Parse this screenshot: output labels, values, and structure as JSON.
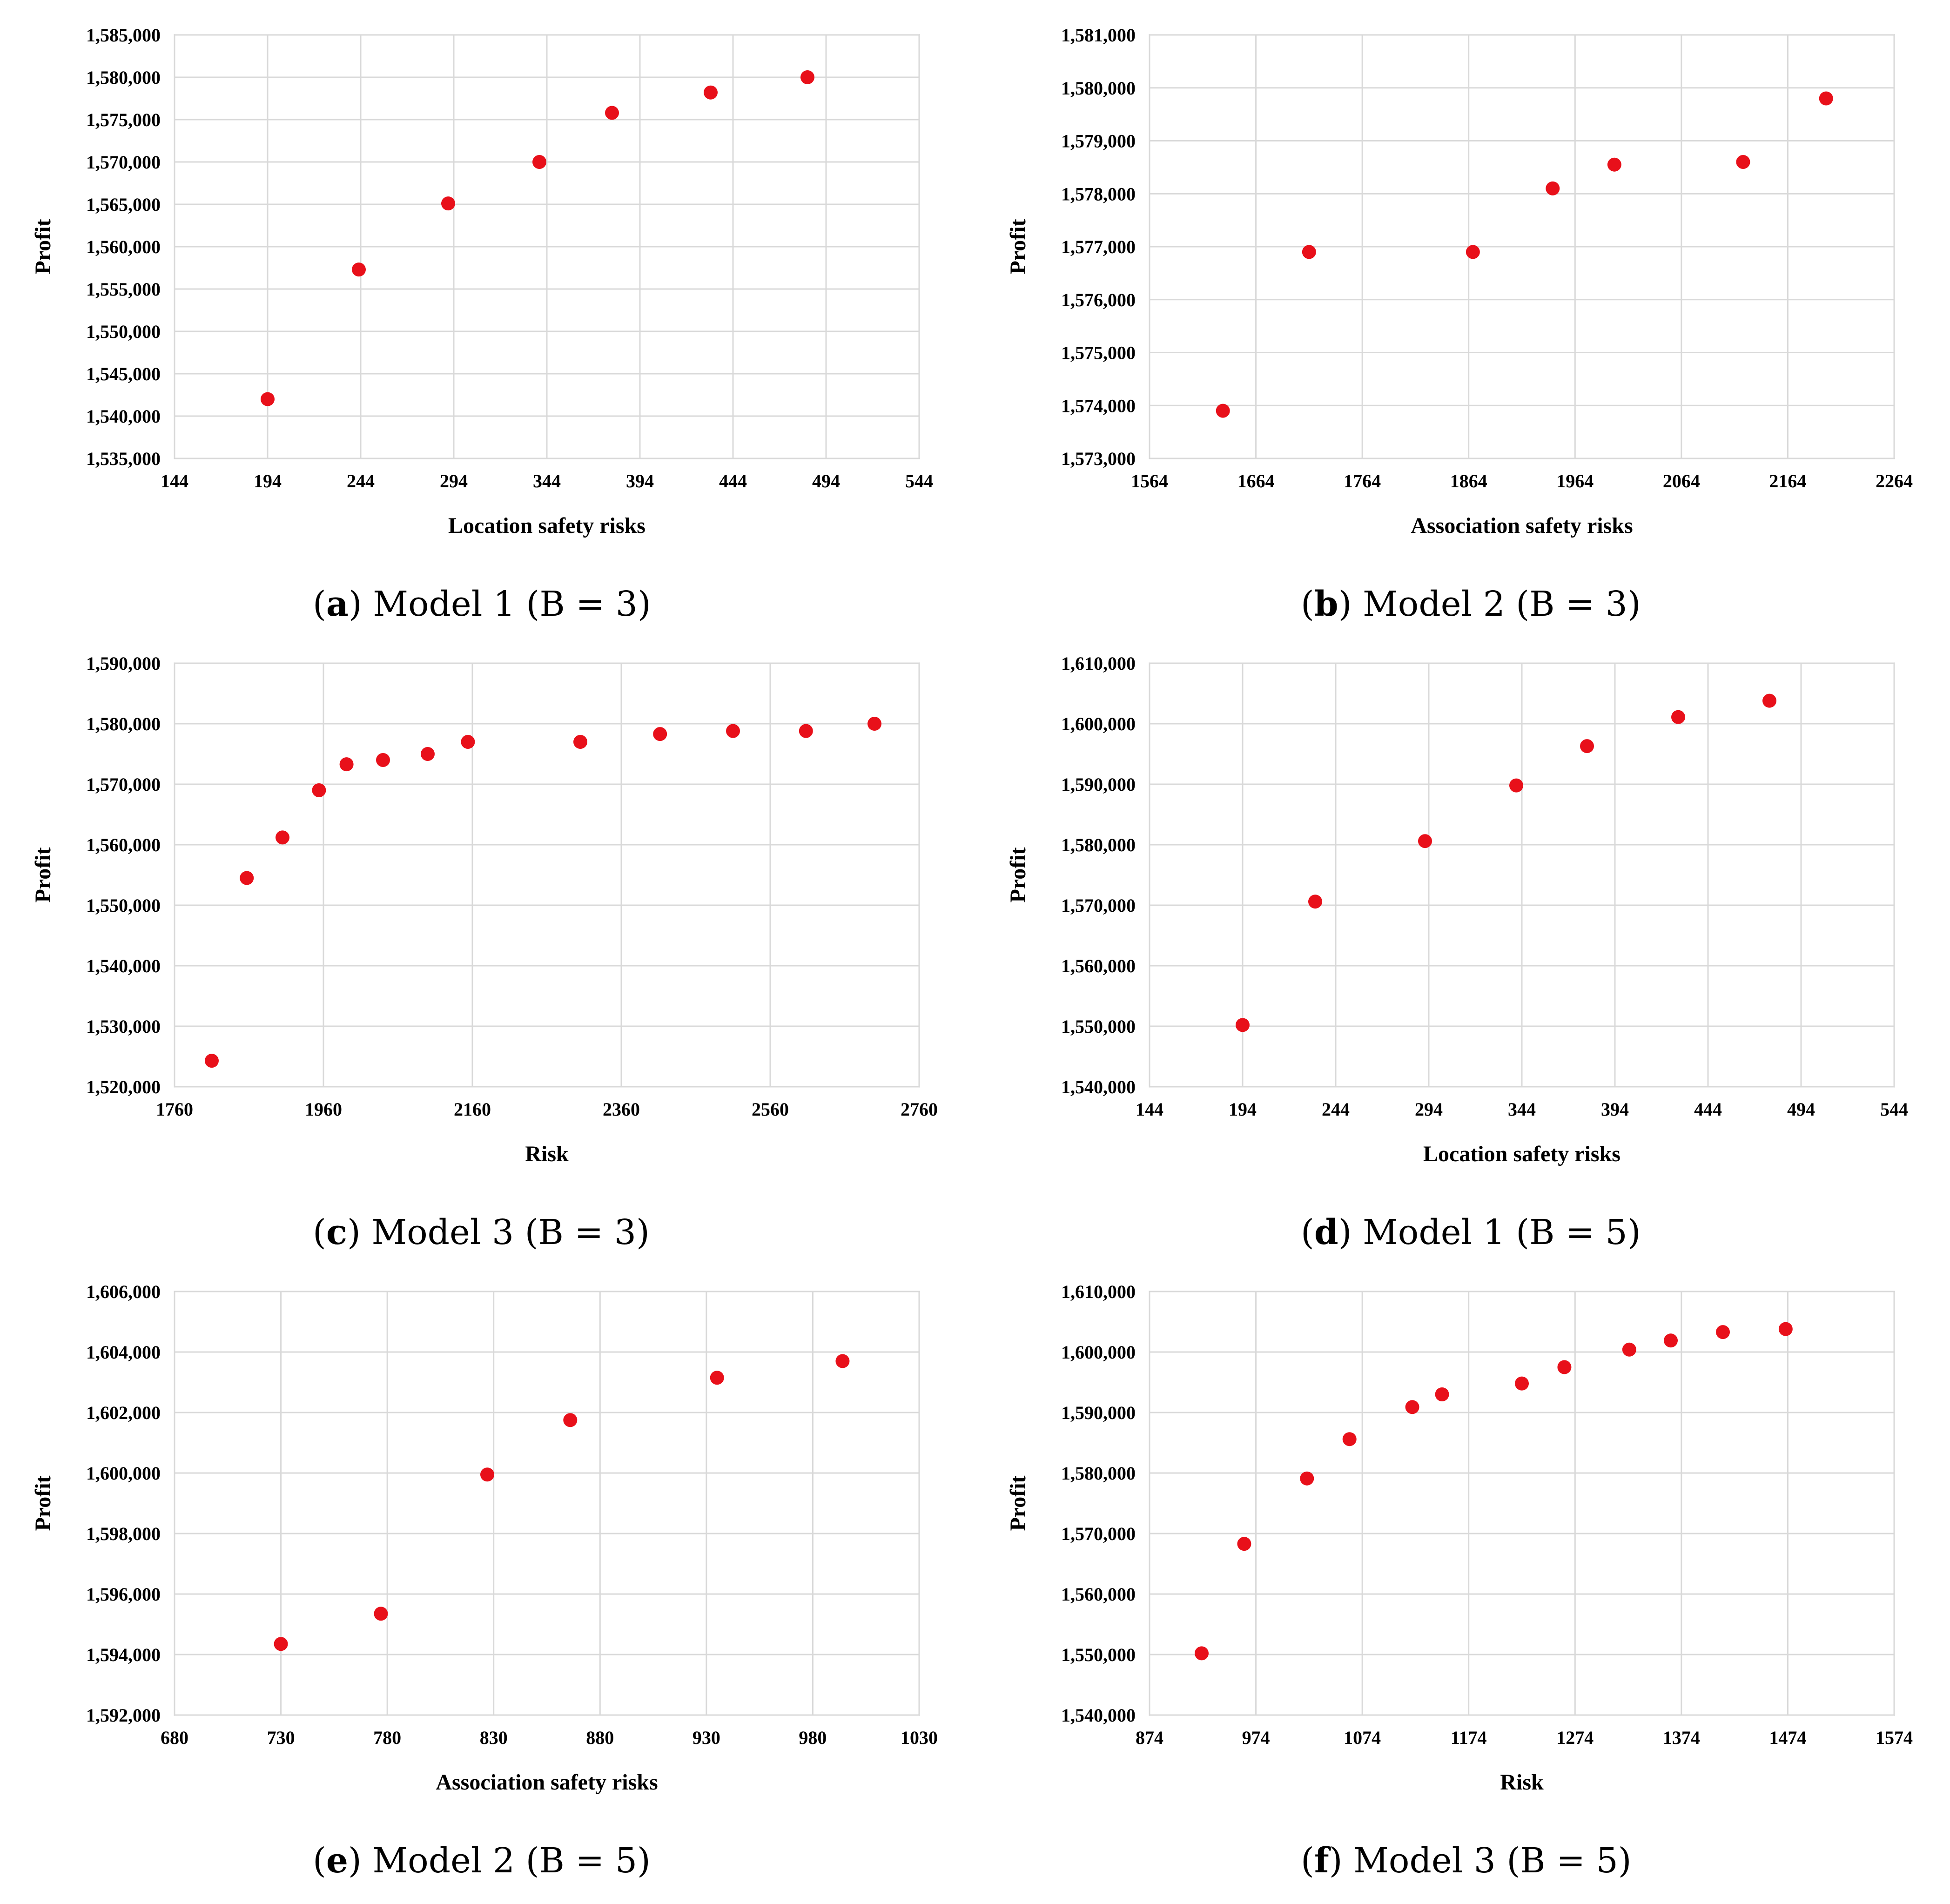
{
  "chart_data": [
    {
      "type": "scatter",
      "caption": {
        "letter": "a",
        "text": "Model 1 (B = 3)"
      },
      "xlabel": "Location safety risks",
      "ylabel": "Profit",
      "xlim": [
        144,
        544
      ],
      "xticks": [
        "144",
        "194",
        "244",
        "294",
        "344",
        "394",
        "444",
        "494",
        "544"
      ],
      "ylim": [
        1535000,
        1585000
      ],
      "yticks": [
        "1,535,000",
        "1,540,000",
        "1,545,000",
        "1,550,000",
        "1,555,000",
        "1,560,000",
        "1,565,000",
        "1,570,000",
        "1,575,000",
        "1,580,000",
        "1,585,000"
      ],
      "marker_color": "#e8101a",
      "points": [
        [
          194,
          1542000
        ],
        [
          243,
          1557300
        ],
        [
          291,
          1565100
        ],
        [
          340,
          1570000
        ],
        [
          379,
          1575800
        ],
        [
          432,
          1578200
        ],
        [
          484,
          1580000
        ]
      ]
    },
    {
      "type": "scatter",
      "caption": {
        "letter": "b",
        "text": "Model 2 (B = 3)"
      },
      "xlabel": "Association safety risks",
      "ylabel": "Profit",
      "xlim": [
        1564,
        2264
      ],
      "xticks": [
        "1564",
        "1664",
        "1764",
        "1864",
        "1964",
        "2064",
        "2164",
        "2264"
      ],
      "ylim": [
        1573000,
        1581000
      ],
      "yticks": [
        "1,573,000",
        "1,574,000",
        "1,575,000",
        "1,576,000",
        "1,577,000",
        "1,578,000",
        "1,579,000",
        "1,580,000",
        "1,581,000"
      ],
      "marker_color": "#e8101a",
      "points": [
        [
          1633,
          1573900
        ],
        [
          1714,
          1576900
        ],
        [
          1868,
          1576900
        ],
        [
          1943,
          1578100
        ],
        [
          2001,
          1578550
        ],
        [
          2122,
          1578600
        ],
        [
          2200,
          1579800
        ]
      ]
    },
    {
      "type": "scatter",
      "caption": {
        "letter": "c",
        "text": "Model 3 (B = 3)"
      },
      "xlabel": "Risk",
      "ylabel": "Profit",
      "xlim": [
        1760,
        2760
      ],
      "xticks": [
        "1760",
        "1960",
        "2160",
        "2360",
        "2560",
        "2760"
      ],
      "ylim": [
        1520000,
        1590000
      ],
      "yticks": [
        "1,520,000",
        "1,530,000",
        "1,540,000",
        "1,550,000",
        "1,560,000",
        "1,570,000",
        "1,580,000",
        "1,590,000"
      ],
      "marker_color": "#e8101a",
      "points": [
        [
          1810,
          1524300
        ],
        [
          1857,
          1554500
        ],
        [
          1905,
          1561200
        ],
        [
          1954,
          1569000
        ],
        [
          1991,
          1573300
        ],
        [
          2040,
          1574000
        ],
        [
          2100,
          1575000
        ],
        [
          2154,
          1577000
        ],
        [
          2305,
          1577000
        ],
        [
          2412,
          1578300
        ],
        [
          2510,
          1578800
        ],
        [
          2608,
          1578800
        ],
        [
          2700,
          1580000
        ]
      ]
    },
    {
      "type": "scatter",
      "caption": {
        "letter": "d",
        "text": "Model 1 (B = 5)"
      },
      "xlabel": "Location safety risks",
      "ylabel": "Profit",
      "xlim": [
        144,
        544
      ],
      "xticks": [
        "144",
        "194",
        "244",
        "294",
        "344",
        "394",
        "444",
        "494",
        "544"
      ],
      "ylim": [
        1540000,
        1610000
      ],
      "yticks": [
        "1,540,000",
        "1,550,000",
        "1,560,000",
        "1,570,000",
        "1,580,000",
        "1,590,000",
        "1,600,000",
        "1,610,000"
      ],
      "marker_color": "#e8101a",
      "points": [
        [
          194,
          1550200
        ],
        [
          233,
          1570600
        ],
        [
          292,
          1580600
        ],
        [
          341,
          1589800
        ],
        [
          379,
          1596300
        ],
        [
          428,
          1601100
        ],
        [
          477,
          1603800
        ]
      ]
    },
    {
      "type": "scatter",
      "caption": {
        "letter": "e",
        "text": "Model 2 (B = 5)"
      },
      "xlabel": "Association safety risks",
      "ylabel": "Profit",
      "xlim": [
        680,
        1030
      ],
      "xticks": [
        "680",
        "730",
        "780",
        "830",
        "880",
        "930",
        "980",
        "1030"
      ],
      "ylim": [
        1592000,
        1606000
      ],
      "yticks": [
        "1,592,000",
        "1,594,000",
        "1,596,000",
        "1,598,000",
        "1,600,000",
        "1,602,000",
        "1,604,000",
        "1,606,000"
      ],
      "marker_color": "#e8101a",
      "points": [
        [
          730,
          1594350
        ],
        [
          777,
          1595350
        ],
        [
          827,
          1599950
        ],
        [
          866,
          1601750
        ],
        [
          935,
          1603150
        ],
        [
          994,
          1603700
        ]
      ]
    },
    {
      "type": "scatter",
      "caption": {
        "letter": "f",
        "text": "Model 3 (B = 5)"
      },
      "xlabel": "Risk",
      "ylabel": "Profit",
      "xlim": [
        874,
        1574
      ],
      "xticks": [
        "874",
        "974",
        "1074",
        "1174",
        "1274",
        "1374",
        "1474",
        "1574"
      ],
      "ylim": [
        1540000,
        1610000
      ],
      "yticks": [
        "1,540,000",
        "1,550,000",
        "1,560,000",
        "1,570,000",
        "1,580,000",
        "1,590,000",
        "1,600,000",
        "1,610,000"
      ],
      "marker_color": "#e8101a",
      "points": [
        [
          923,
          1550200
        ],
        [
          963,
          1568300
        ],
        [
          1022,
          1579100
        ],
        [
          1062,
          1585600
        ],
        [
          1121,
          1590900
        ],
        [
          1149,
          1593000
        ],
        [
          1224,
          1594800
        ],
        [
          1264,
          1597500
        ],
        [
          1325,
          1600400
        ],
        [
          1364,
          1601900
        ],
        [
          1413,
          1603300
        ],
        [
          1472,
          1603800
        ]
      ]
    }
  ]
}
